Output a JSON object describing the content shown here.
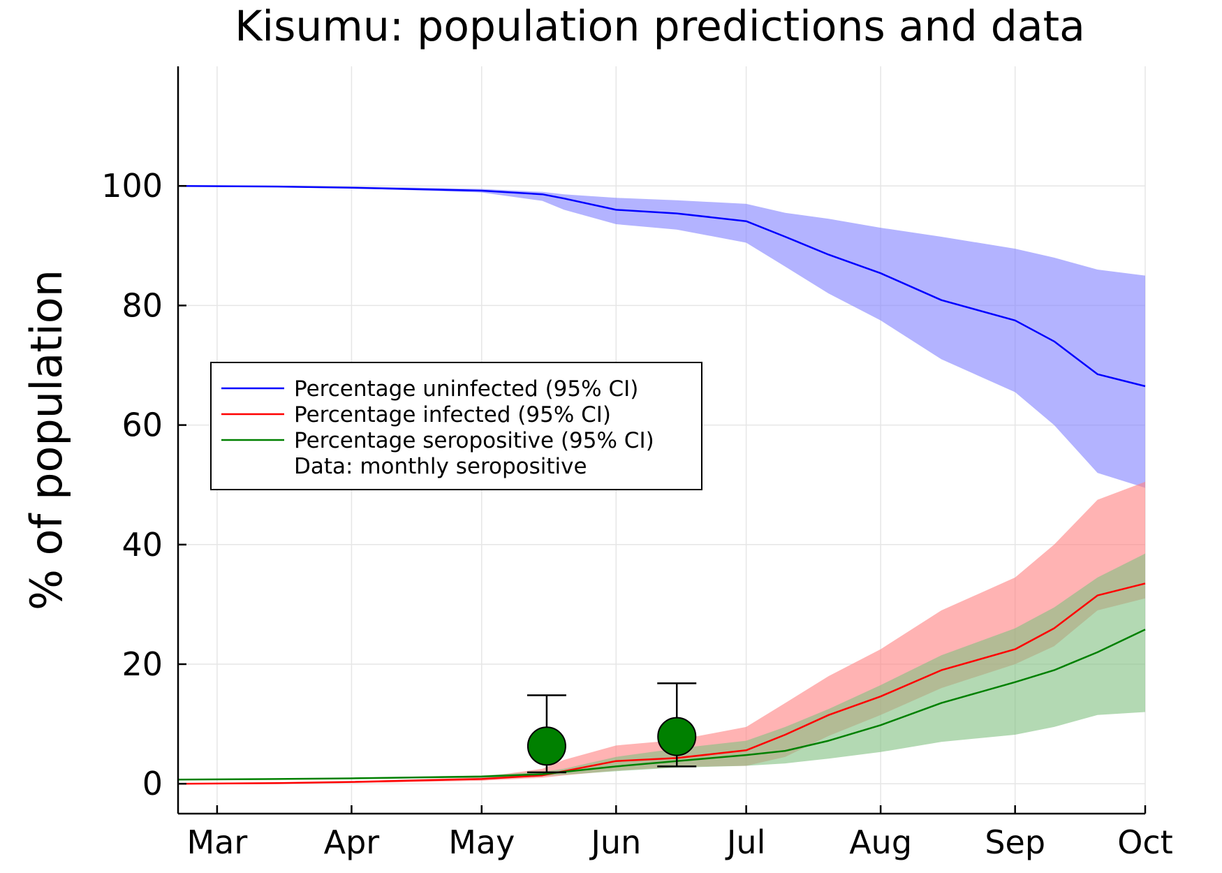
{
  "chart_data": {
    "type": "line",
    "title": "Kisumu: population predictions and data",
    "xlabel": "",
    "ylabel": "% of population",
    "xlim": [
      "2020-02-21",
      "2020-10-01"
    ],
    "ylim": [
      -5,
      120
    ],
    "x_ticks": [
      {
        "date": "2020-03-01",
        "label": "Mar"
      },
      {
        "date": "2020-04-01",
        "label": "Apr"
      },
      {
        "date": "2020-05-01",
        "label": "May"
      },
      {
        "date": "2020-06-01",
        "label": "Jun"
      },
      {
        "date": "2020-07-01",
        "label": "Jul"
      },
      {
        "date": "2020-08-01",
        "label": "Aug"
      },
      {
        "date": "2020-09-01",
        "label": "Sep"
      },
      {
        "date": "2020-10-01",
        "label": "Oct"
      }
    ],
    "y_ticks": [
      0,
      20,
      40,
      60,
      80,
      100
    ],
    "grid": true,
    "legend_position": "center-left",
    "series": [
      {
        "name": "Percentage uninfected (95% CI)",
        "color": "#0000ff",
        "band_color": "#8080ff",
        "x": [
          "2020-02-21",
          "2020-03-15",
          "2020-04-01",
          "2020-05-01",
          "2020-05-15",
          "2020-05-20",
          "2020-06-01",
          "2020-06-15",
          "2020-07-01",
          "2020-07-10",
          "2020-07-20",
          "2020-08-01",
          "2020-08-15",
          "2020-09-01",
          "2020-09-10",
          "2020-09-20",
          "2020-10-01"
        ],
        "mean": [
          100,
          99.9,
          99.7,
          99.2,
          98.6,
          97.9,
          96.0,
          95.4,
          94.1,
          91.5,
          88.5,
          85.4,
          80.9,
          77.5,
          74.0,
          68.5,
          66.5
        ],
        "lower": [
          100,
          99.8,
          99.6,
          98.9,
          97.5,
          96.0,
          93.6,
          92.7,
          90.5,
          86.5,
          82.0,
          77.5,
          71.0,
          65.5,
          60.0,
          52.0,
          49.5
        ],
        "upper": [
          100,
          100,
          99.9,
          99.5,
          99.0,
          98.6,
          98.0,
          97.6,
          97.0,
          95.5,
          94.5,
          93.0,
          91.5,
          89.5,
          88.0,
          86.0,
          85.0
        ]
      },
      {
        "name": "Percentage infected (95% CI)",
        "color": "#ff0000",
        "band_color": "#ff8080",
        "x": [
          "2020-02-21",
          "2020-03-15",
          "2020-04-01",
          "2020-05-01",
          "2020-05-15",
          "2020-05-20",
          "2020-06-01",
          "2020-06-15",
          "2020-07-01",
          "2020-07-10",
          "2020-07-20",
          "2020-08-01",
          "2020-08-15",
          "2020-09-01",
          "2020-09-10",
          "2020-09-20",
          "2020-10-01"
        ],
        "mean": [
          0,
          0.1,
          0.3,
          0.8,
          1.4,
          2.1,
          3.8,
          4.3,
          5.6,
          8.2,
          11.5,
          14.6,
          19.0,
          22.5,
          26.0,
          31.5,
          33.5
        ],
        "lower": [
          0,
          0,
          0.1,
          0.5,
          1.0,
          1.4,
          2.2,
          2.8,
          3.0,
          4.5,
          8.0,
          11.5,
          16.0,
          20.0,
          23.0,
          29.0,
          31.0
        ],
        "upper": [
          0,
          0.2,
          0.4,
          1.1,
          2.5,
          4.0,
          6.4,
          7.3,
          9.5,
          13.5,
          18.0,
          22.5,
          29.0,
          34.5,
          40.0,
          47.5,
          50.5
        ]
      },
      {
        "name": "Percentage seropositive (95% CI)",
        "color": "#008000",
        "band_color": "#80c080",
        "x": [
          "2020-02-21",
          "2020-03-15",
          "2020-04-01",
          "2020-05-01",
          "2020-05-15",
          "2020-05-20",
          "2020-06-01",
          "2020-06-15",
          "2020-07-01",
          "2020-07-10",
          "2020-07-20",
          "2020-08-01",
          "2020-08-15",
          "2020-09-01",
          "2020-09-10",
          "2020-09-20",
          "2020-10-01"
        ],
        "mean": [
          0.7,
          0.8,
          0.9,
          1.2,
          1.6,
          2.0,
          2.9,
          3.8,
          4.8,
          5.5,
          7.2,
          9.8,
          13.5,
          17.0,
          19.0,
          22.0,
          25.8
        ],
        "lower": [
          0.6,
          0.7,
          0.8,
          1.0,
          1.3,
          1.5,
          2.1,
          2.7,
          3.0,
          3.4,
          4.2,
          5.3,
          7.0,
          8.2,
          9.5,
          11.5,
          12.0
        ],
        "upper": [
          0.8,
          0.9,
          1.0,
          1.4,
          2.0,
          2.5,
          4.5,
          5.9,
          7.2,
          9.5,
          12.5,
          16.5,
          21.5,
          26.0,
          29.5,
          34.5,
          38.5
        ]
      }
    ],
    "data_points": {
      "name": "Data: monthly seropositive",
      "color": "#008000",
      "points": [
        {
          "x": "2020-05-16",
          "y": 6.3,
          "err_low": 1.9,
          "err_high": 14.8
        },
        {
          "x": "2020-06-15",
          "y": 7.9,
          "err_low": 2.9,
          "err_high": 16.8
        }
      ]
    }
  }
}
